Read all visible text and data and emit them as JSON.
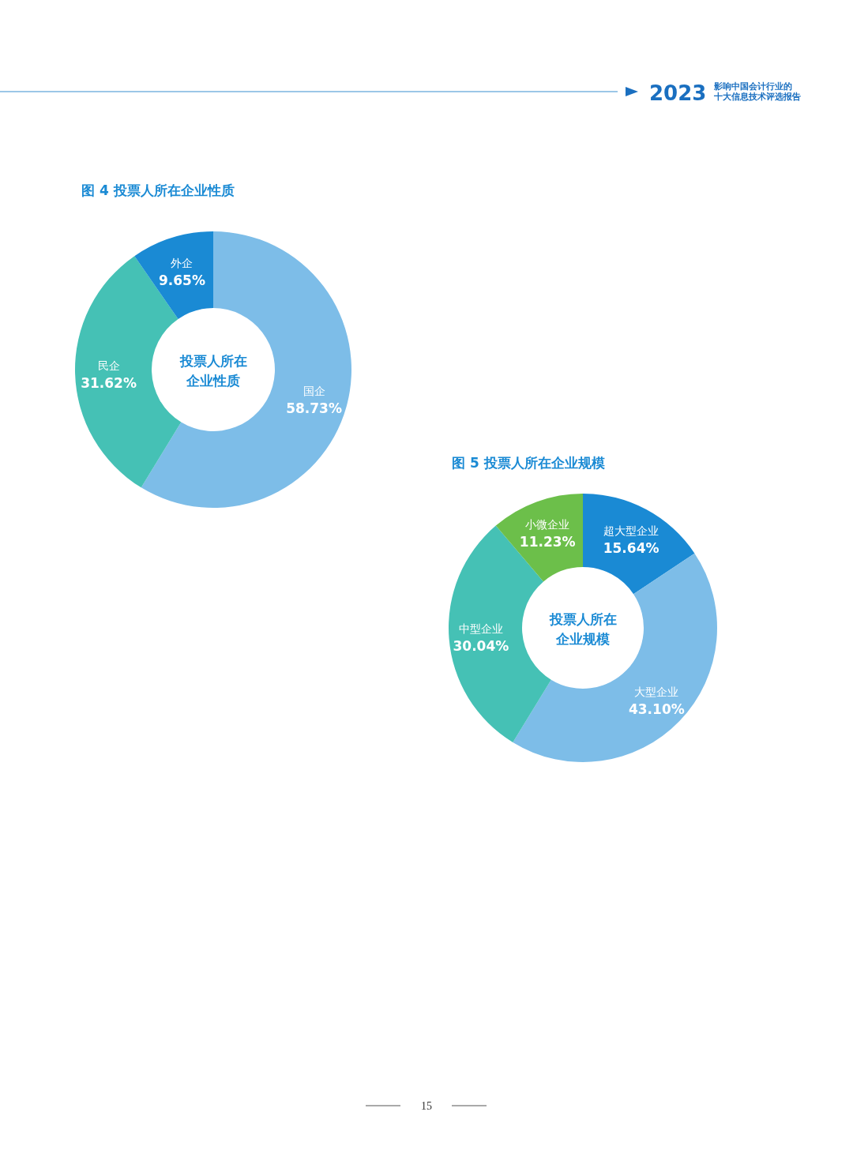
{
  "chart_data": [
    {
      "type": "donut",
      "title": "图 4  投票人所在企业性质",
      "categories": [
        "国企",
        "民企",
        "外企"
      ],
      "values": [
        58.73,
        31.62,
        9.65
      ],
      "colors": [
        "#7dbde8",
        "#45c1b5",
        "#1a8ad4"
      ],
      "value_labels": [
        "58.73%",
        "31.62%",
        "9.65%"
      ],
      "annotations": [
        "投票人所在企业性质",
        "2023",
        "影响中国会计行业的十大信息技术评选报告",
        "15"
      ]
    },
    {
      "type": "donut",
      "title": "图 5  投票人所在企业规模",
      "categories": [
        "超大型企业",
        "大型企业",
        "中型企业",
        "小微企业"
      ],
      "values": [
        15.64,
        43.1,
        30.04,
        11.23
      ],
      "colors": [
        "#1a8ad4",
        "#7dbde8",
        "#45c1b5",
        "#6cbf4a"
      ],
      "value_labels": [
        "15.64%",
        "43.10%",
        "30.04%",
        "11.23%"
      ],
      "annotations": [
        "投票人所在企业规模"
      ]
    }
  ]
}
